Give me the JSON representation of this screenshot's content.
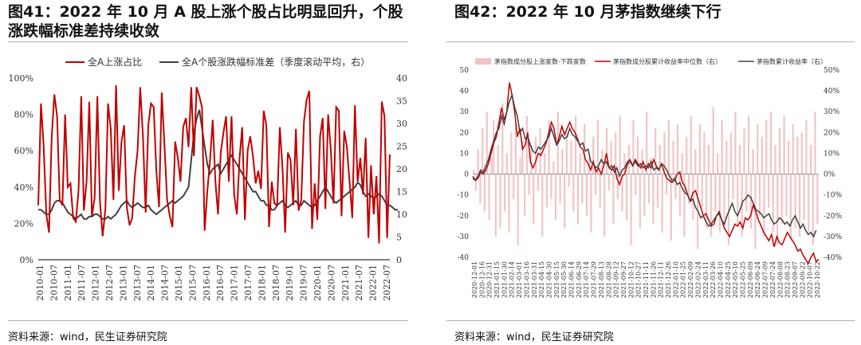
{
  "figures": [
    {
      "title": "图41：2022 年 10 月 A 股上涨个股占比明显回升，个股涨跌幅标准差持续收敛",
      "source": "资料来源：wind，民生证券研究院"
    },
    {
      "title": "图42：2022 年 10 月茅指数继续下行",
      "source": "资料来源：wind，民生证券研究院"
    }
  ],
  "chart_data": [
    {
      "type": "line",
      "x_tick_labels": [
        "2010-01",
        "2010-07",
        "2011-01",
        "2011-07",
        "2012-01",
        "2012-07",
        "2013-01",
        "2013-07",
        "2014-01",
        "2014-07",
        "2015-01",
        "2015-07",
        "2016-01",
        "2016-07",
        "2017-01",
        "2017-07",
        "2018-01",
        "2018-07",
        "2019-01",
        "2019-07",
        "2020-01",
        "2020-07",
        "2021-01",
        "2021-07",
        "2022-01",
        "2022-07"
      ],
      "y_left": {
        "ticks": [
          "0%",
          "20%",
          "40%",
          "60%",
          "80%",
          "100%"
        ],
        "lim": [
          0,
          100
        ]
      },
      "y_right": {
        "ticks": [
          "0",
          "5",
          "10",
          "15",
          "20",
          "25",
          "30",
          "35",
          "40"
        ],
        "lim": [
          0,
          40
        ]
      },
      "legend_position": "top",
      "series": [
        {
          "name": "全A上涨占比",
          "axis": "left",
          "color": "#c00000",
          "values": [
            30,
            86,
            63,
            25,
            15,
            67,
            91,
            79,
            33,
            30,
            80,
            40,
            42,
            23,
            21,
            38,
            90,
            27,
            43,
            87,
            24,
            34,
            90,
            32,
            13,
            28,
            86,
            72,
            33,
            96,
            38,
            65,
            74,
            29,
            19,
            23,
            46,
            60,
            95,
            68,
            26,
            74,
            86,
            84,
            49,
            29,
            92,
            64,
            33,
            24,
            18,
            65,
            56,
            43,
            73,
            78,
            62,
            95,
            57,
            95,
            90,
            84,
            16,
            38,
            55,
            77,
            43,
            25,
            59,
            70,
            79,
            43,
            79,
            36,
            25,
            56,
            73,
            22,
            60,
            68,
            57,
            42,
            49,
            39,
            82,
            74,
            18,
            43,
            31,
            30,
            73,
            51,
            15,
            59,
            55,
            30,
            72,
            27,
            33,
            76,
            88,
            93,
            17,
            42,
            22,
            68,
            78,
            28,
            80,
            61,
            31,
            84,
            82,
            24,
            71,
            62,
            43,
            23,
            85,
            43,
            56,
            36,
            67,
            12,
            52,
            25,
            46,
            9,
            87,
            79,
            12,
            58
          ]
        },
        {
          "name": "全A个股涨跌幅标准差（季度滚动平均，右）",
          "axis": "right",
          "color": "#404040",
          "values": [
            11,
            11,
            10.5,
            10,
            10,
            11,
            12.5,
            13,
            13,
            12.5,
            11.5,
            10.5,
            10,
            9.5,
            9,
            9.5,
            10,
            9,
            9,
            9.5,
            9.5,
            10,
            10,
            9.5,
            9,
            9,
            9.5,
            9,
            9.5,
            10,
            11,
            12,
            12.5,
            13,
            12,
            11.5,
            12,
            12.5,
            12,
            11.5,
            11.5,
            12,
            11,
            10.5,
            10,
            10.5,
            11,
            11.5,
            12,
            12.5,
            13,
            12.5,
            13,
            13.5,
            14,
            15,
            16,
            22,
            28,
            31,
            33,
            29,
            25,
            21,
            19,
            20,
            20.5,
            21,
            19,
            20,
            21,
            22,
            23,
            22,
            21,
            20,
            19,
            18,
            17,
            16,
            15,
            15,
            14,
            13,
            13,
            12,
            12,
            11,
            11,
            12,
            12.5,
            13,
            12,
            11.5,
            12,
            12.5,
            13,
            12,
            12,
            13,
            12.5,
            12,
            11.5,
            12,
            13,
            14,
            15,
            16,
            15,
            14,
            13,
            12.5,
            13,
            13.5,
            14,
            14.5,
            15,
            15.5,
            16,
            17,
            16.5,
            15,
            14,
            14.5,
            14,
            13.5,
            14,
            14.5,
            14,
            13,
            12,
            12,
            11.5,
            11,
            11
          ]
        }
      ]
    },
    {
      "type": "line",
      "x_tick_labels": [
        "2020-12-01",
        "2020-12-16",
        "2020-12-31",
        "2021-01-15",
        "2021-01-30",
        "2021-02-14",
        "2021-03-01",
        "2021-03-16",
        "2021-03-31",
        "2021-04-15",
        "2021-04-30",
        "2021-05-15",
        "2021-05-30",
        "2021-06-14",
        "2021-06-29",
        "2021-07-14",
        "2021-07-29",
        "2021-08-13",
        "2021-08-28",
        "2021-09-12",
        "2021-09-27",
        "2021-10-12",
        "2021-10-27",
        "2021-11-11",
        "2021-11-26",
        "2021-12-11",
        "2021-12-26",
        "2022-01-10",
        "2022-01-25",
        "2022-02-09",
        "2022-02-24",
        "2022-03-11",
        "2022-03-26",
        "2022-04-10",
        "2022-04-25",
        "2022-05-10",
        "2022-05-25",
        "2022-06-09",
        "2022-06-24",
        "2022-07-09",
        "2022-07-24",
        "2022-08-08",
        "2022-08-23",
        "2022-09-07",
        "2022-09-22",
        "2022-10-07",
        "2022-10-22"
      ],
      "y_left": {
        "ticks": [
          "-40",
          "-30",
          "-20",
          "-10",
          "0",
          "10",
          "20",
          "30",
          "40",
          "50"
        ],
        "lim": [
          -40,
          50
        ]
      },
      "y_right": {
        "ticks": [
          "-40%",
          "-30%",
          "-20%",
          "-10%",
          "0%",
          "10%",
          "20%",
          "30%",
          "40%",
          "50%"
        ],
        "lim": [
          -40,
          50
        ]
      },
      "legend_position": "top",
      "series": [
        {
          "name": "茅指数成分股上涨家数-下跌家数",
          "axis": "left",
          "kind": "bar",
          "color": "#f2c4c4",
          "values": [
            2,
            -8,
            12,
            -14,
            22,
            -18,
            30,
            -22,
            8,
            26,
            -30,
            14,
            -26,
            34,
            -18,
            10,
            -28,
            20,
            -12,
            24,
            -34,
            8,
            16,
            -20,
            28,
            -10,
            14,
            -24,
            18,
            -8,
            22,
            -30,
            10,
            -16,
            26,
            -12,
            6,
            -22,
            30,
            -14,
            12,
            -26,
            20,
            -6,
            16,
            -18,
            28,
            -24,
            10,
            -14,
            24,
            -20,
            8,
            -28,
            18,
            -10,
            26,
            -16,
            12,
            -30,
            22,
            -8,
            16,
            -24,
            20,
            -12,
            28,
            -18,
            10,
            -22,
            14,
            -34,
            26,
            -10,
            18,
            -26,
            12,
            -20,
            30,
            -14,
            8,
            -24,
            22,
            -16,
            14,
            -28,
            20,
            -10,
            26,
            -32,
            16,
            -12,
            24,
            -20,
            10,
            -30,
            18,
            -14,
            28,
            -22,
            12,
            -36,
            24,
            -16,
            20,
            -26,
            14,
            -30,
            32,
            -18,
            10,
            -28,
            26,
            -22,
            16,
            -34,
            20,
            -12,
            30,
            -24,
            14,
            -30,
            22,
            -18,
            28,
            -26,
            12,
            -36,
            24,
            -20,
            18,
            -30,
            26,
            -16,
            30,
            -28,
            14,
            -34,
            22,
            -24,
            28,
            -20,
            16,
            -32,
            24,
            -26,
            18,
            -30,
            20,
            -22,
            26,
            -28,
            14,
            -34,
            30,
            -24
          ]
        },
        {
          "name": "茅指数成分股累计收益率中位数（右）",
          "axis": "right",
          "color": "#c00000",
          "values": [
            -2,
            -3,
            -2,
            1,
            0,
            2,
            5,
            10,
            15,
            18,
            25,
            32,
            26,
            30,
            44,
            38,
            30,
            18,
            22,
            12,
            14,
            20,
            6,
            3,
            6,
            10,
            9,
            12,
            15,
            20,
            25,
            22,
            14,
            18,
            23,
            19,
            22,
            25,
            22,
            20,
            17,
            13,
            12,
            7,
            5,
            2,
            6,
            1,
            3,
            0,
            4,
            10,
            3,
            2,
            4,
            -2,
            -5,
            -1,
            0,
            5,
            6,
            4,
            7,
            5,
            3,
            6,
            2,
            5,
            3,
            7,
            4,
            2,
            5,
            1,
            -2,
            -3,
            -4,
            -3,
            0,
            1,
            -4,
            -6,
            -10,
            -13,
            -9,
            -8,
            -12,
            -16,
            -20,
            -19,
            -22,
            -25,
            -24,
            -20,
            -18,
            -22,
            -26,
            -28,
            -30,
            -27,
            -24,
            -25,
            -23,
            -26,
            -21,
            -22,
            -20,
            -15,
            -18,
            -22,
            -25,
            -28,
            -30,
            -32,
            -29,
            -35,
            -30,
            -33,
            -34,
            -31,
            -28,
            -30,
            -32,
            -34,
            -37,
            -36,
            -39,
            -41,
            -43,
            -40,
            -38,
            -42,
            -41
          ]
        },
        {
          "name": "茅指数累计收益率（右）",
          "axis": "right",
          "color": "#404040",
          "values": [
            -1,
            -3,
            -1,
            2,
            1,
            4,
            7,
            12,
            16,
            20,
            22,
            28,
            24,
            30,
            35,
            38,
            32,
            28,
            20,
            22,
            17,
            18,
            14,
            11,
            10,
            13,
            12,
            14,
            16,
            18,
            22,
            18,
            14,
            16,
            19,
            17,
            18,
            22,
            19,
            18,
            16,
            14,
            15,
            11,
            12,
            6,
            5,
            3,
            4,
            7,
            5,
            6,
            3,
            4,
            1,
            3,
            -1,
            2,
            3,
            6,
            7,
            4,
            6,
            4,
            5,
            3,
            4,
            3,
            6,
            2,
            3,
            2,
            5,
            4,
            2,
            -1,
            -3,
            -2,
            -5,
            -4,
            -7,
            -9,
            -10,
            -13,
            -12,
            -16,
            -18,
            -21,
            -20,
            -23,
            -25,
            -24,
            -22,
            -20,
            -19,
            -22,
            -24,
            -20,
            -17,
            -14,
            -18,
            -20,
            -17,
            -13,
            -12,
            -10,
            -11,
            -14,
            -17,
            -18,
            -19,
            -21,
            -20,
            -19,
            -22,
            -24,
            -23,
            -21,
            -22,
            -24,
            -23,
            -25,
            -22,
            -20,
            -23,
            -26,
            -24,
            -27,
            -29,
            -28,
            -30,
            -27
          ]
        }
      ]
    }
  ]
}
